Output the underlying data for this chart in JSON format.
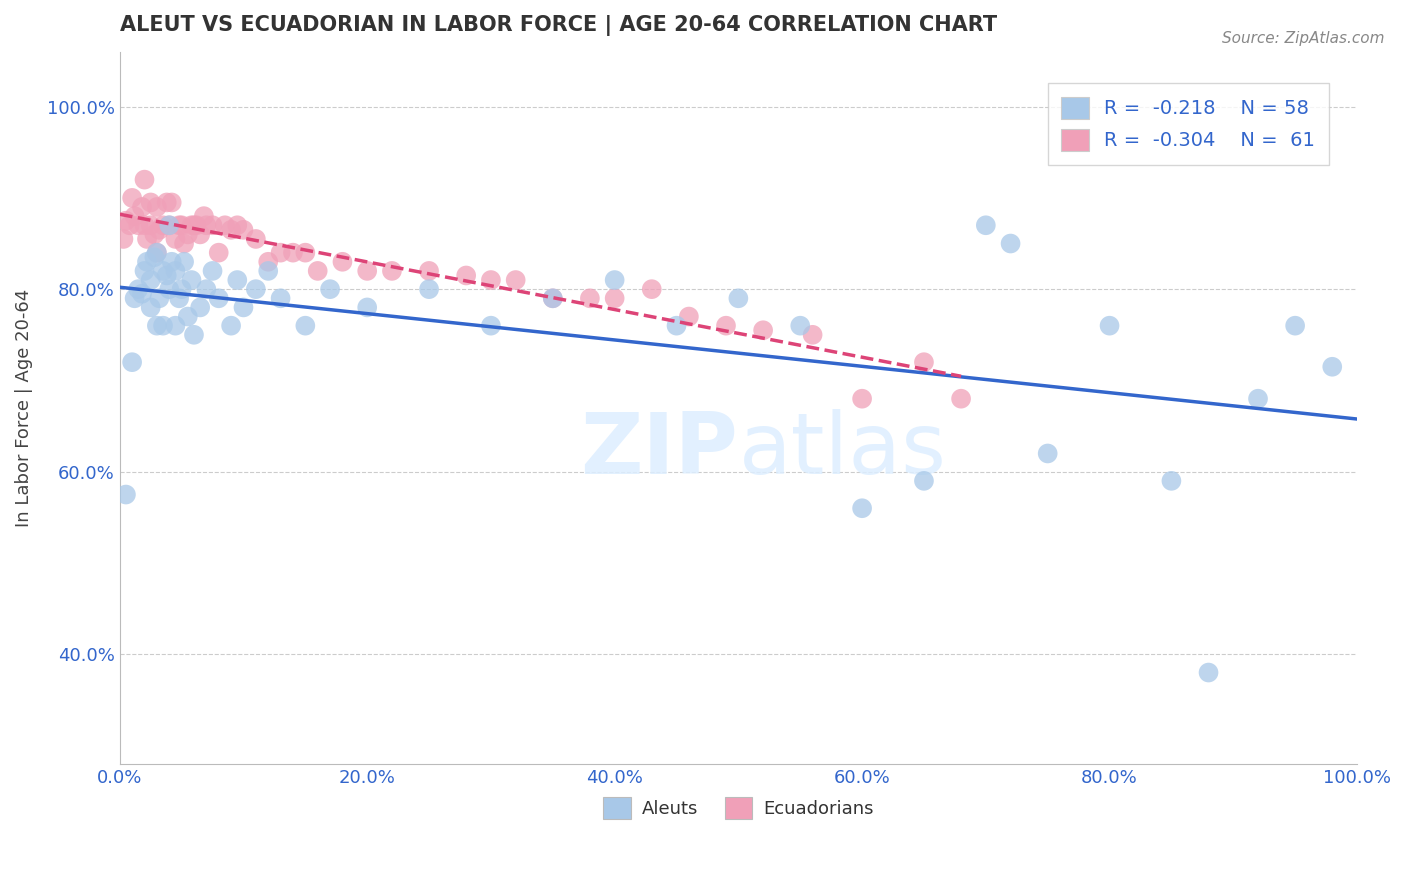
{
  "title": "ALEUT VS ECUADORIAN IN LABOR FORCE | AGE 20-64 CORRELATION CHART",
  "ylabel": "In Labor Force | Age 20-64",
  "source_text": "Source: ZipAtlas.com",
  "aleut_R": -0.218,
  "aleut_N": 58,
  "ecuadorian_R": -0.304,
  "ecuadorian_N": 61,
  "aleut_color": "#a8c8e8",
  "ecuadorian_color": "#f0a0b8",
  "aleut_line_color": "#3366cc",
  "ecuadorian_line_color": "#dd4477",
  "xlim": [
    0.0,
    1.0
  ],
  "ylim": [
    0.28,
    1.06
  ],
  "x_ticks": [
    0.0,
    0.2,
    0.4,
    0.6,
    0.8,
    1.0
  ],
  "x_tick_labels": [
    "0.0%",
    "20.0%",
    "40.0%",
    "60.0%",
    "80.0%",
    "100.0%"
  ],
  "y_ticks": [
    0.4,
    0.6,
    0.8,
    1.0
  ],
  "y_tick_labels": [
    "40.0%",
    "60.0%",
    "80.0%",
    "100.0%"
  ],
  "aleut_x": [
    0.005,
    0.01,
    0.012,
    0.015,
    0.018,
    0.02,
    0.022,
    0.025,
    0.025,
    0.028,
    0.03,
    0.03,
    0.032,
    0.035,
    0.035,
    0.038,
    0.04,
    0.04,
    0.042,
    0.045,
    0.045,
    0.048,
    0.05,
    0.052,
    0.055,
    0.058,
    0.06,
    0.065,
    0.07,
    0.075,
    0.08,
    0.09,
    0.095,
    0.1,
    0.11,
    0.12,
    0.13,
    0.15,
    0.17,
    0.2,
    0.25,
    0.3,
    0.35,
    0.4,
    0.45,
    0.5,
    0.55,
    0.6,
    0.65,
    0.7,
    0.72,
    0.75,
    0.8,
    0.85,
    0.88,
    0.92,
    0.95,
    0.98
  ],
  "aleut_y": [
    0.575,
    0.72,
    0.79,
    0.8,
    0.795,
    0.82,
    0.83,
    0.81,
    0.78,
    0.835,
    0.76,
    0.84,
    0.79,
    0.82,
    0.76,
    0.815,
    0.8,
    0.87,
    0.83,
    0.76,
    0.82,
    0.79,
    0.8,
    0.83,
    0.77,
    0.81,
    0.75,
    0.78,
    0.8,
    0.82,
    0.79,
    0.76,
    0.81,
    0.78,
    0.8,
    0.82,
    0.79,
    0.76,
    0.8,
    0.78,
    0.8,
    0.76,
    0.79,
    0.81,
    0.76,
    0.79,
    0.76,
    0.56,
    0.59,
    0.87,
    0.85,
    0.62,
    0.76,
    0.59,
    0.38,
    0.68,
    0.76,
    0.715
  ],
  "ecuadorian_x": [
    0.003,
    0.005,
    0.008,
    0.01,
    0.012,
    0.015,
    0.018,
    0.02,
    0.02,
    0.022,
    0.025,
    0.025,
    0.028,
    0.03,
    0.03,
    0.032,
    0.035,
    0.038,
    0.04,
    0.042,
    0.045,
    0.048,
    0.05,
    0.052,
    0.055,
    0.058,
    0.06,
    0.062,
    0.065,
    0.068,
    0.07,
    0.075,
    0.08,
    0.085,
    0.09,
    0.095,
    0.1,
    0.11,
    0.12,
    0.13,
    0.14,
    0.15,
    0.16,
    0.18,
    0.2,
    0.22,
    0.25,
    0.28,
    0.3,
    0.32,
    0.35,
    0.38,
    0.4,
    0.43,
    0.46,
    0.49,
    0.52,
    0.56,
    0.6,
    0.65,
    0.68
  ],
  "ecuadorian_y": [
    0.855,
    0.875,
    0.87,
    0.9,
    0.88,
    0.87,
    0.89,
    0.87,
    0.92,
    0.855,
    0.87,
    0.895,
    0.86,
    0.84,
    0.89,
    0.865,
    0.87,
    0.895,
    0.87,
    0.895,
    0.855,
    0.87,
    0.87,
    0.85,
    0.86,
    0.87,
    0.87,
    0.87,
    0.86,
    0.88,
    0.87,
    0.87,
    0.84,
    0.87,
    0.865,
    0.87,
    0.865,
    0.855,
    0.83,
    0.84,
    0.84,
    0.84,
    0.82,
    0.83,
    0.82,
    0.82,
    0.82,
    0.815,
    0.81,
    0.81,
    0.79,
    0.79,
    0.79,
    0.8,
    0.77,
    0.76,
    0.755,
    0.75,
    0.68,
    0.72,
    0.68
  ],
  "watermark_zip": "ZIP",
  "watermark_atlas": "atlas",
  "background_color": "#ffffff",
  "grid_color": "#cccccc"
}
